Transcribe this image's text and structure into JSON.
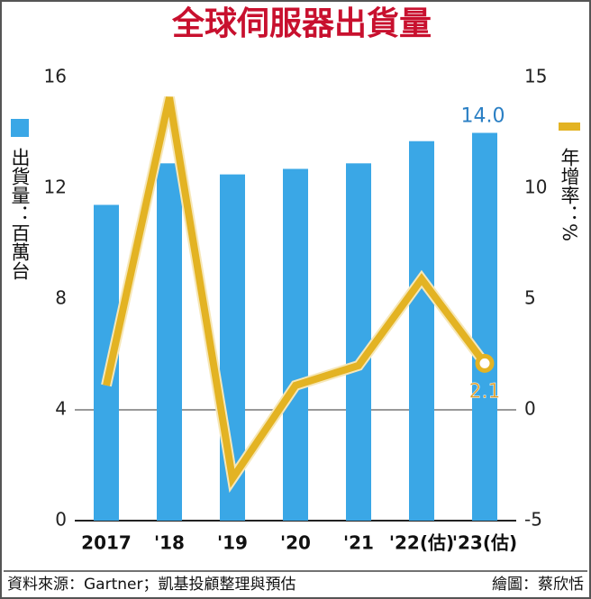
{
  "chart_data": {
    "type": "bar",
    "title": "全球伺服器出貨量",
    "categories": [
      "2017",
      "'18",
      "'19",
      "'20",
      "'21",
      "'22(估)",
      "'23(估)"
    ],
    "series": [
      {
        "name": "出貨量：百萬台",
        "type": "bar",
        "color": "#3aa7e6",
        "values": [
          11.4,
          12.9,
          12.5,
          12.7,
          12.9,
          13.7,
          14.0
        ],
        "value_labels": [
          null,
          null,
          null,
          null,
          null,
          null,
          "14.0"
        ]
      },
      {
        "name": "年增率：%",
        "type": "line",
        "axis": "y2",
        "color": "#e3b323",
        "values": [
          1.1,
          14.1,
          -3.1,
          1.1,
          2.0,
          5.9,
          2.1
        ],
        "value_labels": [
          null,
          null,
          null,
          null,
          null,
          null,
          "2.1"
        ]
      }
    ],
    "ylim": [
      0,
      16
    ],
    "yticks": [
      0,
      4,
      8,
      12,
      16
    ],
    "y2lim": [
      -5,
      15
    ],
    "y2ticks": [
      -5,
      0,
      5,
      10,
      15
    ],
    "source": "資料來源：Gartner；凱基投顧整理與預估",
    "credit": "繪圖：蔡欣恬"
  }
}
